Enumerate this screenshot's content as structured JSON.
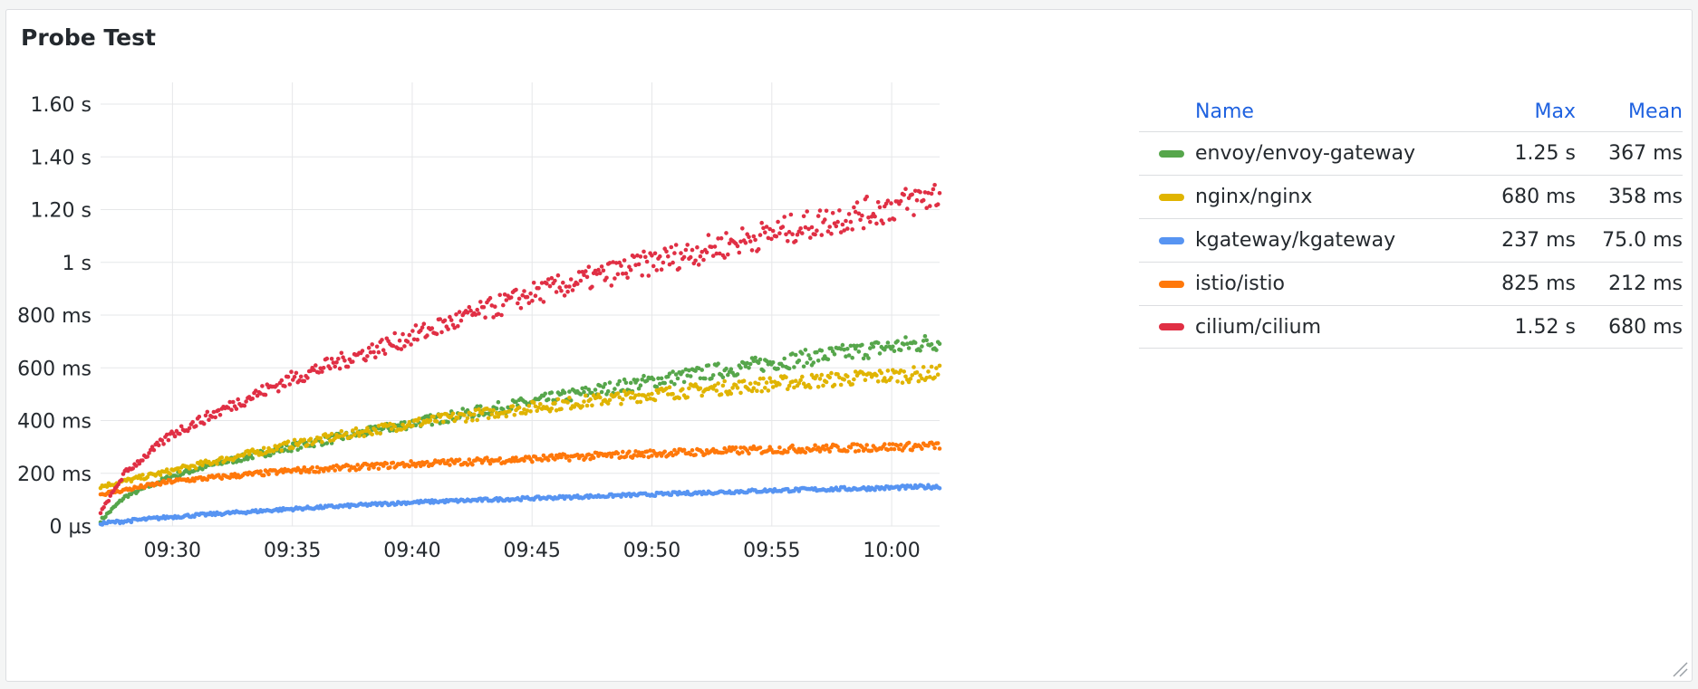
{
  "panel": {
    "title": "Probe Test"
  },
  "legend": {
    "headers": {
      "name": "Name",
      "max": "Max",
      "mean": "Mean"
    },
    "rows": [
      {
        "name": "envoy/envoy-gateway",
        "max": "1.25 s",
        "mean": "367 ms",
        "color": "#56a64b"
      },
      {
        "name": "nginx/nginx",
        "max": "680 ms",
        "mean": "358 ms",
        "color": "#e0b400"
      },
      {
        "name": "kgateway/kgateway",
        "max": "237 ms",
        "mean": "75.0 ms",
        "color": "#5794f2"
      },
      {
        "name": "istio/istio",
        "max": "825 ms",
        "mean": "212 ms",
        "color": "#ff780a"
      },
      {
        "name": "cilium/cilium",
        "max": "1.52 s",
        "mean": "680 ms",
        "color": "#e02f44"
      }
    ]
  },
  "chart_data": {
    "type": "scatter",
    "title": "Probe Test",
    "x_range": [
      "09:27",
      "10:02"
    ],
    "y_range_ms": [
      0,
      1600
    ],
    "grid": true,
    "legend_placement": "right",
    "x_ticks": [
      "09:30",
      "09:35",
      "09:40",
      "09:45",
      "09:50",
      "09:55",
      "10:00"
    ],
    "y_ticks": [
      {
        "value": 0,
        "label": "0 µs"
      },
      {
        "value": 200,
        "label": "200 ms"
      },
      {
        "value": 400,
        "label": "400 ms"
      },
      {
        "value": 600,
        "label": "600 ms"
      },
      {
        "value": 800,
        "label": "800 ms"
      },
      {
        "value": 1000,
        "label": "1 s"
      },
      {
        "value": 1200,
        "label": "1.20 s"
      },
      {
        "value": 1400,
        "label": "1.40 s"
      },
      {
        "value": 1600,
        "label": "1.60 s"
      }
    ],
    "series": [
      {
        "name": "envoy/envoy-gateway",
        "color": "#56a64b",
        "x": [
          "09:27",
          "09:28",
          "09:30",
          "09:32",
          "09:35",
          "09:40",
          "09:45",
          "09:50",
          "09:55",
          "10:00",
          "10:02"
        ],
        "y": [
          20,
          110,
          190,
          240,
          300,
          390,
          470,
          550,
          620,
          680,
          700
        ]
      },
      {
        "name": "nginx/nginx",
        "color": "#e0b400",
        "x": [
          "09:27",
          "09:28",
          "09:30",
          "09:32",
          "09:35",
          "09:40",
          "09:45",
          "09:50",
          "09:55",
          "10:00",
          "10:02"
        ],
        "y": [
          150,
          170,
          210,
          250,
          310,
          390,
          450,
          500,
          540,
          570,
          580
        ]
      },
      {
        "name": "kgateway/kgateway",
        "color": "#5794f2",
        "x": [
          "09:27",
          "09:30",
          "09:35",
          "09:40",
          "09:45",
          "09:50",
          "09:55",
          "10:00",
          "10:02"
        ],
        "y": [
          10,
          35,
          65,
          90,
          105,
          120,
          135,
          145,
          150
        ]
      },
      {
        "name": "istio/istio",
        "color": "#ff780a",
        "x": [
          "09:27",
          "09:30",
          "09:35",
          "09:40",
          "09:45",
          "09:50",
          "09:55",
          "10:00",
          "10:02"
        ],
        "y": [
          120,
          170,
          210,
          235,
          255,
          275,
          290,
          300,
          305
        ]
      },
      {
        "name": "cilium/cilium",
        "color": "#e02f44",
        "x": [
          "09:27",
          "09:28",
          "09:30",
          "09:33",
          "09:35",
          "09:40",
          "09:45",
          "09:50",
          "09:55",
          "10:00",
          "10:02"
        ],
        "y": [
          50,
          200,
          350,
          480,
          560,
          720,
          880,
          1000,
          1110,
          1210,
          1260
        ]
      }
    ]
  }
}
